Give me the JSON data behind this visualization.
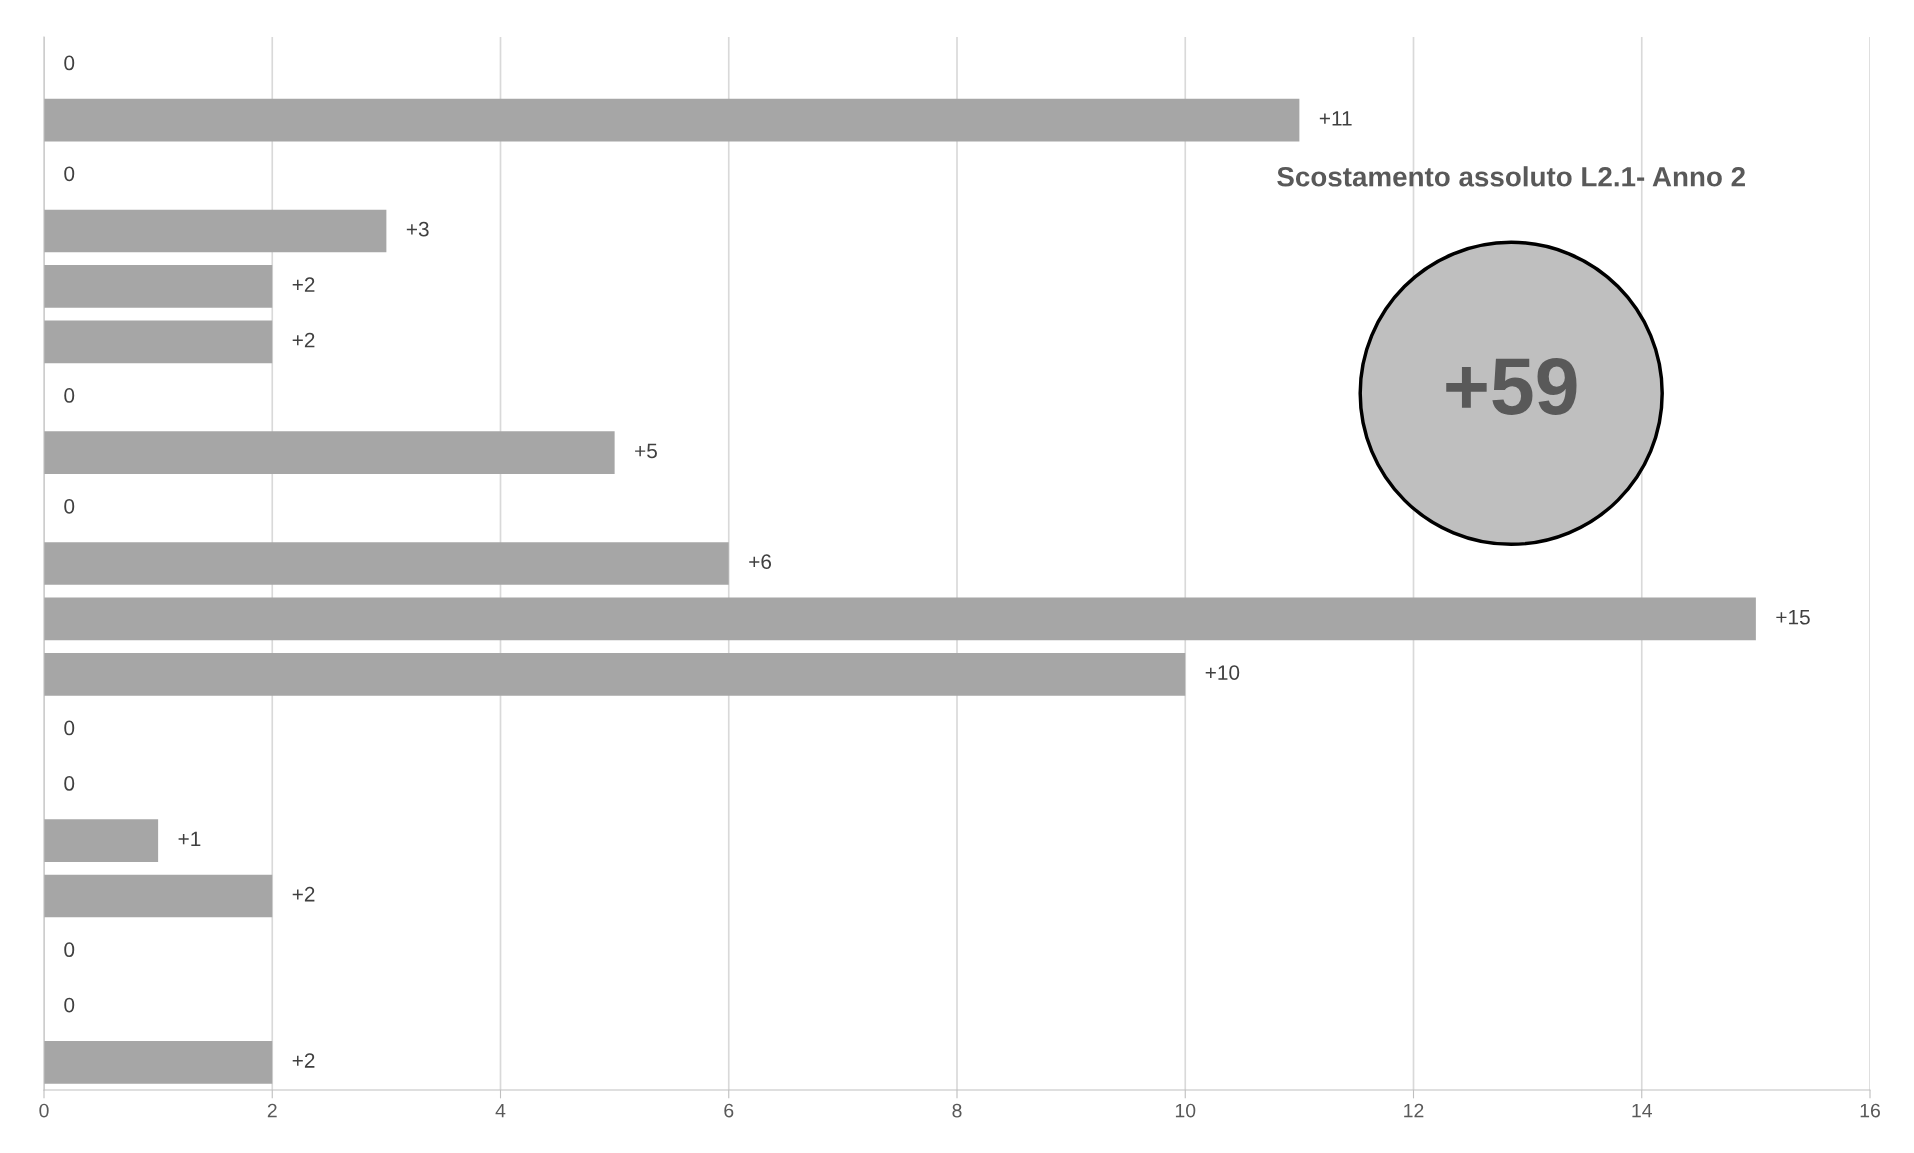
{
  "chart_data": {
    "type": "bar",
    "orientation": "horizontal",
    "categories": [
      null,
      null,
      null,
      null,
      null,
      null,
      null,
      null,
      null,
      null,
      null,
      null,
      null,
      null,
      null,
      null,
      null,
      null,
      null
    ],
    "values": [
      0,
      11,
      0,
      3,
      2,
      2,
      0,
      5,
      0,
      6,
      15,
      10,
      0,
      0,
      1,
      2,
      0,
      0,
      2
    ],
    "value_labels": [
      "0",
      "+11",
      "0",
      "+3",
      "+2",
      "+2",
      "0",
      "+5",
      "0",
      "+6",
      "+15",
      "+10",
      "0",
      "0",
      "+1",
      "+2",
      "0",
      "0",
      "+2"
    ],
    "color": "#a6a6a6",
    "xlim": [
      0,
      16
    ],
    "xticks": [
      0,
      2,
      4,
      6,
      8,
      10,
      12,
      14,
      16
    ],
    "grid": "x",
    "tick_labels": "x",
    "title": "Scostamento assoluto L2.1- Anno 2",
    "annotations": [
      "+59"
    ]
  }
}
